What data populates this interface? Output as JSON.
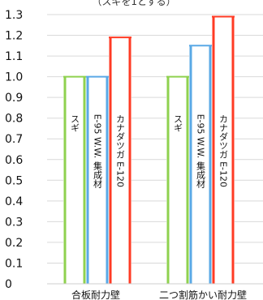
{
  "chart_data": {
    "type": "bar",
    "title": "（スギを1とする）",
    "ylim": [
      0,
      1.3
    ],
    "yticks": [
      "0",
      "0.1",
      "0.2",
      "0.3",
      "0.4",
      "0.5",
      "0.6",
      "0.7",
      "0.8",
      "0.9",
      "1.0",
      "1.1",
      "1.2",
      "1.3"
    ],
    "grid": true,
    "categories": [
      "合板耐力壁",
      "二つ割筋かい耐力壁"
    ],
    "series": [
      {
        "name": "スギ",
        "values": [
          1.0,
          1.0
        ],
        "color": "#8fd14f"
      },
      {
        "name": "E-95 W.W. 集成材",
        "values": [
          1.0,
          1.15
        ],
        "color": "#5aa9e6"
      },
      {
        "name": "カナダツガ E-120",
        "values": [
          1.19,
          1.29
        ],
        "color": "#ff3b24"
      }
    ]
  }
}
